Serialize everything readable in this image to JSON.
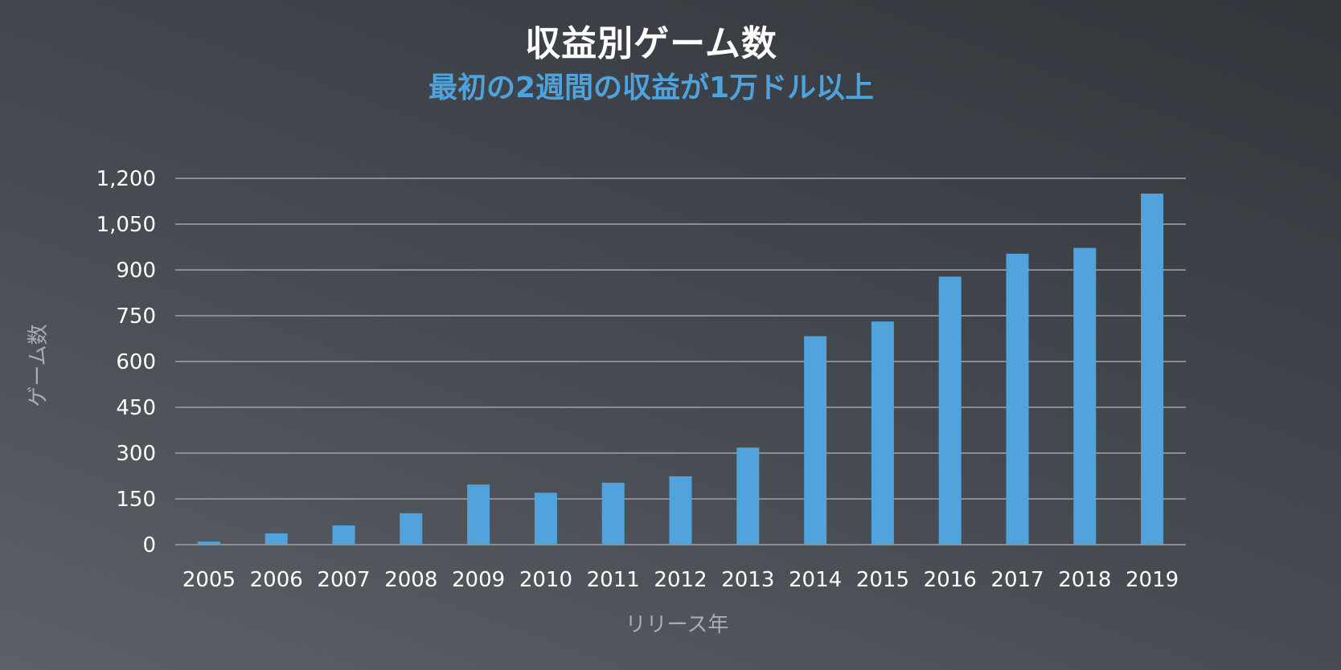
{
  "chart_data": {
    "type": "bar",
    "title": "収益別ゲーム数",
    "subtitle": "最初の2週間の収益が1万ドル以上",
    "xlabel": "リリース年",
    "ylabel": "ゲーム数",
    "ylim": [
      0,
      1200
    ],
    "yticks": [
      0,
      150,
      300,
      450,
      600,
      750,
      900,
      1050,
      1200
    ],
    "ytick_labels": [
      "0",
      "150",
      "300",
      "450",
      "600",
      "750",
      "900",
      "1,050",
      "1,200"
    ],
    "categories": [
      "2005",
      "2006",
      "2007",
      "2008",
      "2009",
      "2010",
      "2011",
      "2012",
      "2013",
      "2014",
      "2015",
      "2016",
      "2017",
      "2018",
      "2019"
    ],
    "values": [
      10,
      37,
      63,
      103,
      197,
      170,
      203,
      224,
      318,
      683,
      731,
      878,
      953,
      972,
      1150
    ],
    "grid": true,
    "colors": {
      "bar": "#52a3db",
      "grid": "#8a8e94",
      "title": "#ffffff",
      "subtitle": "#4fa3dd",
      "axis_title": "#a9adb2",
      "tick_label": "#ffffff"
    }
  }
}
